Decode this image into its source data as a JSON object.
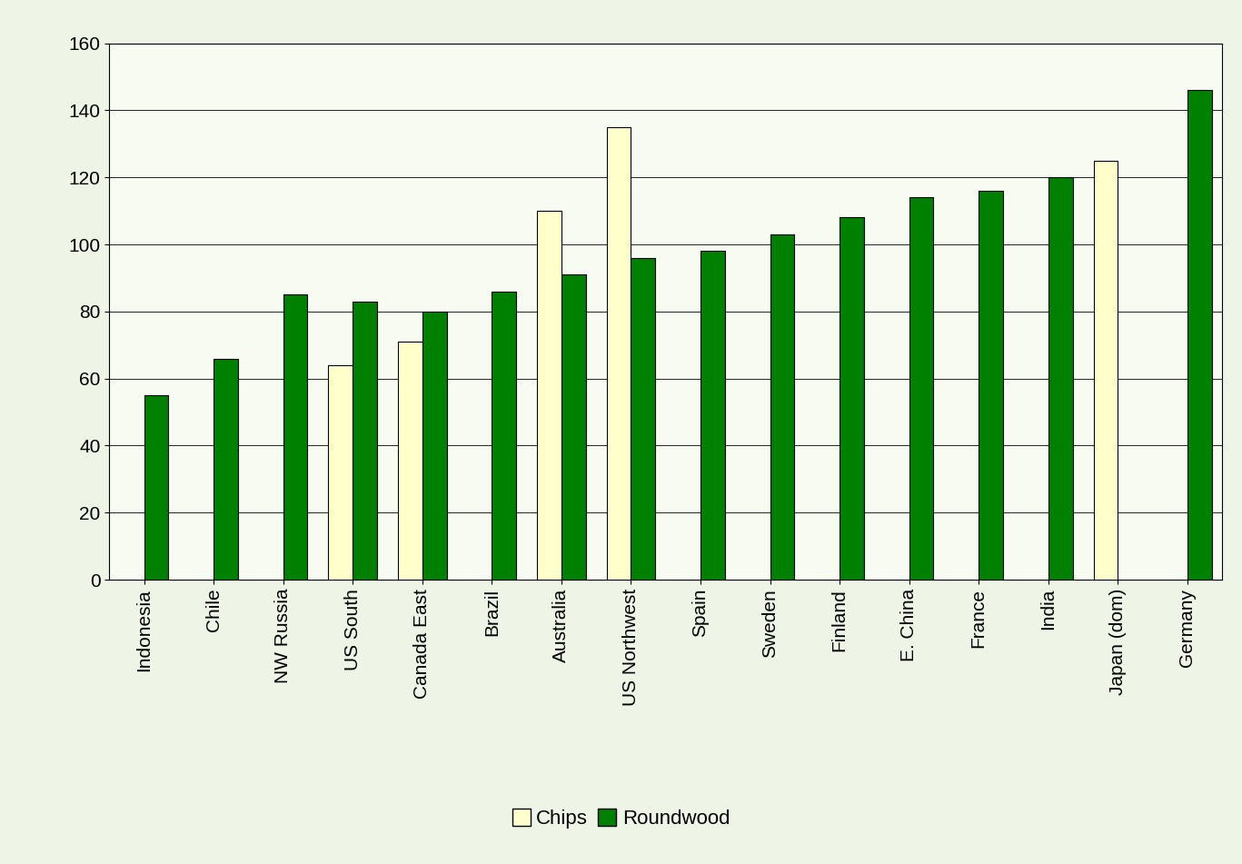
{
  "chart_data": {
    "type": "bar",
    "categories": [
      "Indonesia",
      "Chile",
      "NW Russia",
      "US South",
      "Canada East",
      "Brazil",
      "Australia",
      "US Northwest",
      "Spain",
      "Sweden",
      "Finland",
      "E. China",
      "France",
      "India",
      "Japan (dom)",
      "Germany"
    ],
    "series": [
      {
        "name": "Chips",
        "color": "#FFFFCC",
        "values": [
          null,
          null,
          null,
          64,
          71,
          null,
          110,
          135,
          null,
          null,
          null,
          null,
          null,
          null,
          125,
          null
        ]
      },
      {
        "name": "Roundwood",
        "color": "#008000",
        "values": [
          55,
          66,
          85,
          83,
          80,
          86,
          91,
          96,
          98,
          103,
          108,
          114,
          116,
          120,
          null,
          146
        ]
      }
    ],
    "ylim": [
      0,
      160
    ],
    "yticks": [
      0,
      20,
      40,
      60,
      80,
      100,
      120,
      140,
      160
    ],
    "grid": true,
    "legend": "lower center"
  }
}
